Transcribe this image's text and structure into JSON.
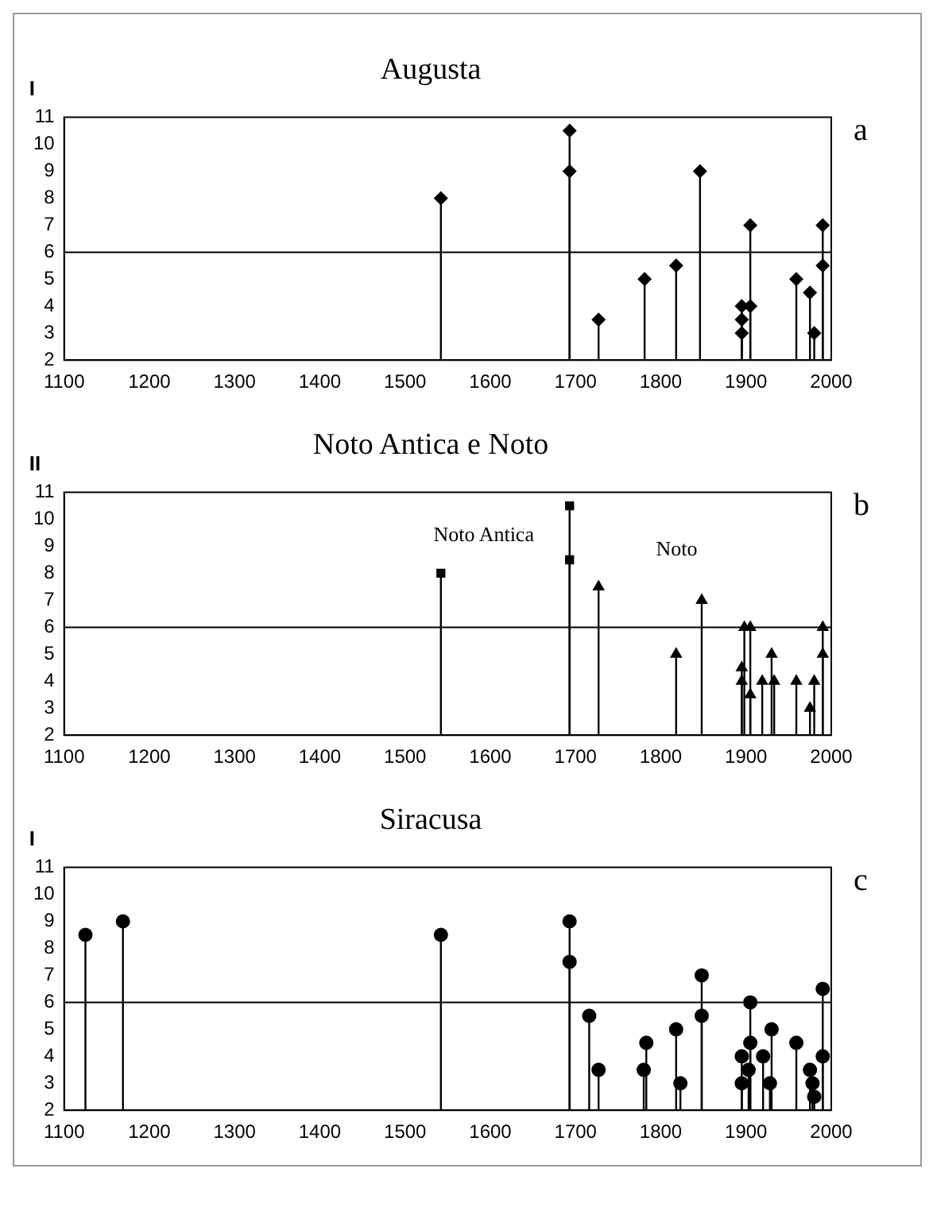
{
  "chart_data": [
    {
      "type": "lollipop",
      "title": "Augusta",
      "ylabel": "I",
      "xlim": [
        1100,
        2000
      ],
      "xticks": [
        1100,
        1200,
        1300,
        1400,
        1500,
        1600,
        1700,
        1800,
        1900,
        2000
      ],
      "ylim": [
        2,
        11
      ],
      "yticks": [
        2,
        3,
        4,
        5,
        6,
        7,
        8,
        9,
        10,
        11
      ],
      "grid": false,
      "legend": false,
      "ref_lines": [
        {
          "axis": "y",
          "value": 6,
          "color": "#000000"
        }
      ],
      "annotations": [
        "a"
      ],
      "series": [
        {
          "color": "#000000",
          "marker": "diamond",
          "x": [
            1542,
            1693,
            1693,
            1727,
            1781,
            1818,
            1846,
            1895,
            1895,
            1895,
            1905,
            1905,
            1959,
            1975,
            1980,
            1990,
            1990
          ],
          "values": [
            8,
            10.5,
            9,
            3.5,
            5,
            5.5,
            9,
            4,
            3.5,
            3,
            7,
            4,
            5,
            4.5,
            3,
            7,
            5.5
          ]
        }
      ]
    },
    {
      "type": "lollipop",
      "title": "Noto Antica e Noto",
      "ylabel": "II",
      "xlim": [
        1100,
        2000
      ],
      "xticks": [
        1100,
        1200,
        1300,
        1400,
        1500,
        1600,
        1700,
        1800,
        1900,
        2000
      ],
      "ylim": [
        2,
        11
      ],
      "yticks": [
        2,
        3,
        4,
        5,
        6,
        7,
        8,
        9,
        10,
        11
      ],
      "grid": false,
      "legend": false,
      "ref_lines": [
        {
          "axis": "y",
          "value": 6,
          "color": "#000000"
        }
      ],
      "annotations": [
        "b"
      ],
      "series": [
        {
          "name": "Noto Antica",
          "color": "#000000",
          "marker": "square",
          "x": [
            1542,
            1693,
            1693
          ],
          "values": [
            8,
            10.5,
            8.5
          ]
        },
        {
          "name": "Noto",
          "color": "#000000",
          "marker": "triangle",
          "x": [
            1727,
            1818,
            1848,
            1895,
            1895,
            1898,
            1905,
            1905,
            1919,
            1930,
            1933,
            1959,
            1975,
            1980,
            1990,
            1990
          ],
          "values": [
            7.5,
            5,
            7,
            4.5,
            4,
            6,
            6,
            3.5,
            4,
            5,
            4,
            4,
            3,
            4,
            6,
            5
          ]
        }
      ]
    },
    {
      "type": "lollipop",
      "title": "Siracusa",
      "ylabel": "I",
      "xlim": [
        1100,
        2000
      ],
      "xticks": [
        1100,
        1200,
        1300,
        1400,
        1500,
        1600,
        1700,
        1800,
        1900,
        2000
      ],
      "ylim": [
        2,
        11
      ],
      "yticks": [
        2,
        3,
        4,
        5,
        6,
        7,
        8,
        9,
        10,
        11
      ],
      "grid": false,
      "legend": false,
      "ref_lines": [
        {
          "axis": "y",
          "value": 6,
          "color": "#000000"
        }
      ],
      "annotations": [
        "c"
      ],
      "series": [
        {
          "color": "#000000",
          "marker": "circle",
          "x": [
            1125,
            1169,
            1542,
            1693,
            1693,
            1716,
            1727,
            1780,
            1783,
            1818,
            1823,
            1848,
            1848,
            1895,
            1895,
            1903,
            1905,
            1905,
            1920,
            1928,
            1930,
            1959,
            1975,
            1978,
            1980,
            1990,
            1990
          ],
          "values": [
            8.5,
            9,
            8.5,
            9,
            7.5,
            5.5,
            3.5,
            3.5,
            4.5,
            5,
            3,
            7,
            5.5,
            4,
            3,
            3.5,
            6,
            4.5,
            4,
            3,
            5,
            4.5,
            3.5,
            3,
            2.5,
            6.5,
            4
          ]
        }
      ]
    }
  ]
}
